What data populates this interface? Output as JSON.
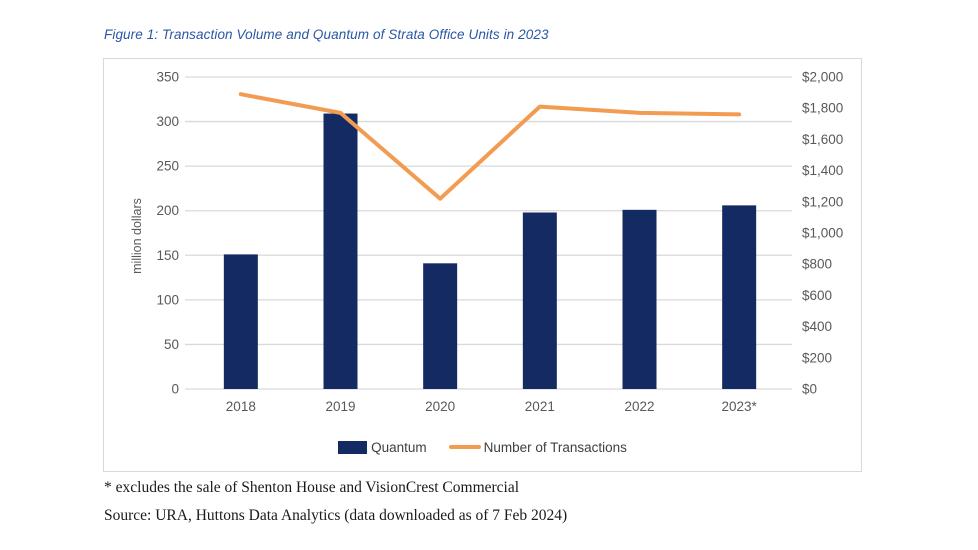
{
  "title": "Figure 1: Transaction Volume and Quantum of Strata Office Units in 2023",
  "footnote": "* excludes the sale of Shenton House and VisionCrest Commercial",
  "source": "Source: URA, Huttons Data Analytics (data downloaded as of 7 Feb 2024)",
  "colors": {
    "title_blue": "#2a57a5",
    "bar_navy": "#132a63",
    "line_orange": "#f29c52",
    "grid_gray": "#d9d9d9",
    "axis_text": "#595959",
    "legend_text": "#404040",
    "panel_border": "#d9d9d9",
    "footer_text": "#1a1a1a"
  },
  "chart_data": {
    "type": "combo-bar-line",
    "title": "Figure 1: Transaction Volume and Quantum of Strata Office Units in 2023",
    "categories": [
      "2018",
      "2019",
      "2020",
      "2021",
      "2022",
      "2023*"
    ],
    "series": [
      {
        "name": "Quantum",
        "kind": "bar",
        "axis": "left",
        "color": "#132a63",
        "values": [
          151,
          309,
          141,
          198,
          201,
          206
        ]
      },
      {
        "name": "Number of Transactions",
        "kind": "line",
        "axis": "right",
        "color": "#f29c52",
        "values": [
          1890,
          1770,
          1220,
          1810,
          1770,
          1760
        ]
      }
    ],
    "left_axis": {
      "label": "million dollars",
      "min": 0,
      "max": 350,
      "step": 50,
      "ticks": [
        "350",
        "300",
        "250",
        "200",
        "150",
        "100",
        "50",
        "0"
      ]
    },
    "right_axis": {
      "label": "",
      "min": 0,
      "max": 2000,
      "step": 200,
      "ticks": [
        "$2,000",
        "$1,800",
        "$1,600",
        "$1,400",
        "$1,200",
        "$1,000",
        "$800",
        "$600",
        "$400",
        "$200",
        "$0"
      ]
    },
    "grid": true,
    "legend_position": "bottom"
  }
}
